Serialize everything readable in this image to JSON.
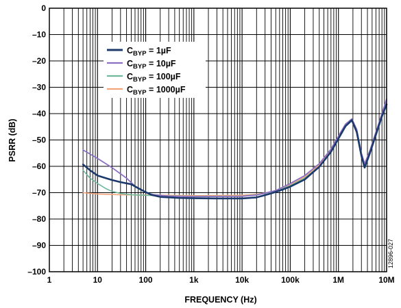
{
  "chart_data": {
    "type": "line",
    "xlabel": "FREQUENCY (Hz)",
    "ylabel": "PSRR (dB)",
    "xscale": "log",
    "xlim": [
      1,
      10000000
    ],
    "ylim": [
      -100,
      0
    ],
    "grid": true,
    "legend_position": "top-left",
    "xticks": [
      {
        "value": 1,
        "label": "1"
      },
      {
        "value": 10,
        "label": "10"
      },
      {
        "value": 100,
        "label": "100"
      },
      {
        "value": 1000,
        "label": "1k"
      },
      {
        "value": 10000,
        "label": "10k"
      },
      {
        "value": 100000,
        "label": "100k"
      },
      {
        "value": 1000000,
        "label": "1M"
      },
      {
        "value": 10000000,
        "label": "10M"
      }
    ],
    "yticks": [
      {
        "value": 0,
        "label": "0"
      },
      {
        "value": -10,
        "label": "–10"
      },
      {
        "value": -20,
        "label": "–20"
      },
      {
        "value": -30,
        "label": "–30"
      },
      {
        "value": -40,
        "label": "–40"
      },
      {
        "value": -50,
        "label": "–50"
      },
      {
        "value": -60,
        "label": "–60"
      },
      {
        "value": -70,
        "label": "–70"
      },
      {
        "value": -80,
        "label": "–80"
      },
      {
        "value": -90,
        "label": "–90"
      },
      {
        "value": -100,
        "label": "–100"
      }
    ],
    "series": [
      {
        "name_main": "C",
        "name_sub": "BYP",
        "name_rest": " = 1µF",
        "color": "#1b3a6b",
        "width": 2.6,
        "points": [
          [
            5,
            -59.3
          ],
          [
            7,
            -61.5
          ],
          [
            10,
            -63.5
          ],
          [
            15,
            -64.5
          ],
          [
            20,
            -65.2
          ],
          [
            30,
            -66
          ],
          [
            50,
            -66.8
          ],
          [
            70,
            -68.3
          ],
          [
            100,
            -69.8
          ],
          [
            130,
            -70.8
          ],
          [
            200,
            -71.6
          ],
          [
            500,
            -72
          ],
          [
            1000,
            -72.1
          ],
          [
            3000,
            -72.2
          ],
          [
            10000,
            -72.2
          ],
          [
            20000,
            -71.8
          ],
          [
            40000,
            -70.3
          ],
          [
            70000,
            -68.8
          ],
          [
            100000,
            -67.7
          ],
          [
            200000,
            -65
          ],
          [
            400000,
            -60.2
          ],
          [
            700000,
            -54.5
          ],
          [
            1000000,
            -49.5
          ],
          [
            1400000,
            -44.8
          ],
          [
            1900000,
            -42.5
          ],
          [
            2400000,
            -47
          ],
          [
            3000000,
            -56
          ],
          [
            3500000,
            -60.5
          ],
          [
            4500000,
            -55
          ],
          [
            6000000,
            -48
          ],
          [
            8000000,
            -41
          ],
          [
            10000000,
            -36.5
          ]
        ]
      },
      {
        "name_main": "C",
        "name_sub": "BYP",
        "name_rest": " = 10µF",
        "color": "#8a6fc2",
        "width": 1.8,
        "points": [
          [
            5,
            -53.8
          ],
          [
            10,
            -57
          ],
          [
            20,
            -60.5
          ],
          [
            40,
            -64.5
          ],
          [
            60,
            -67.5
          ],
          [
            100,
            -70
          ],
          [
            150,
            -70.8
          ],
          [
            300,
            -71.3
          ],
          [
            1000,
            -71.5
          ],
          [
            10000,
            -71.4
          ],
          [
            20000,
            -70.9
          ],
          [
            50000,
            -69.2
          ],
          [
            100000,
            -66.5
          ],
          [
            200000,
            -63.5
          ],
          [
            400000,
            -59
          ],
          [
            700000,
            -53.5
          ],
          [
            1000000,
            -48.5
          ],
          [
            1400000,
            -44
          ],
          [
            1900000,
            -42
          ],
          [
            2400000,
            -46
          ],
          [
            3000000,
            -55
          ],
          [
            3500000,
            -59
          ],
          [
            4500000,
            -54
          ],
          [
            6000000,
            -47
          ],
          [
            8000000,
            -40
          ],
          [
            10000000,
            -34.5
          ]
        ]
      },
      {
        "name_main": "C",
        "name_sub": "BYP",
        "name_rest": " = 100µF",
        "color": "#6fb89c",
        "width": 1.6,
        "points": [
          [
            5,
            -61.5
          ],
          [
            7,
            -64.5
          ],
          [
            10,
            -66.5
          ],
          [
            15,
            -68.5
          ],
          [
            20,
            -69.5
          ],
          [
            30,
            -70.3
          ],
          [
            50,
            -70.8
          ],
          [
            100,
            -71
          ],
          [
            300,
            -71.2
          ],
          [
            1000,
            -71.4
          ],
          [
            10000,
            -71.3
          ],
          [
            20000,
            -70.8
          ],
          [
            50000,
            -69.5
          ],
          [
            100000,
            -67.3
          ],
          [
            200000,
            -64.5
          ],
          [
            400000,
            -60
          ],
          [
            700000,
            -54.5
          ],
          [
            1000000,
            -49
          ],
          [
            1400000,
            -44.5
          ],
          [
            1900000,
            -42.2
          ],
          [
            2400000,
            -46.5
          ],
          [
            3000000,
            -55.5
          ],
          [
            3500000,
            -59.5
          ],
          [
            4500000,
            -54.5
          ],
          [
            6000000,
            -47.5
          ],
          [
            8000000,
            -40.5
          ],
          [
            10000000,
            -35
          ]
        ]
      },
      {
        "name_main": "C",
        "name_sub": "BYP",
        "name_rest": " = 1000µF",
        "color": "#f4a57b",
        "width": 1.6,
        "points": [
          [
            5,
            -70
          ],
          [
            10,
            -70.5
          ],
          [
            30,
            -70.8
          ],
          [
            100,
            -70.9
          ],
          [
            300,
            -71
          ],
          [
            1000,
            -71.1
          ],
          [
            10000,
            -71
          ],
          [
            20000,
            -70.6
          ],
          [
            50000,
            -69.5
          ],
          [
            100000,
            -67
          ],
          [
            200000,
            -64
          ],
          [
            400000,
            -59.5
          ],
          [
            700000,
            -54
          ],
          [
            1000000,
            -48.8
          ],
          [
            1400000,
            -44.2
          ],
          [
            1900000,
            -42
          ],
          [
            2400000,
            -46.2
          ],
          [
            3000000,
            -55.2
          ],
          [
            3500000,
            -59.2
          ],
          [
            4500000,
            -54.2
          ],
          [
            6000000,
            -47.2
          ],
          [
            8000000,
            -40.2
          ],
          [
            10000000,
            -34.8
          ]
        ]
      }
    ],
    "figure_code": "12896-027"
  }
}
